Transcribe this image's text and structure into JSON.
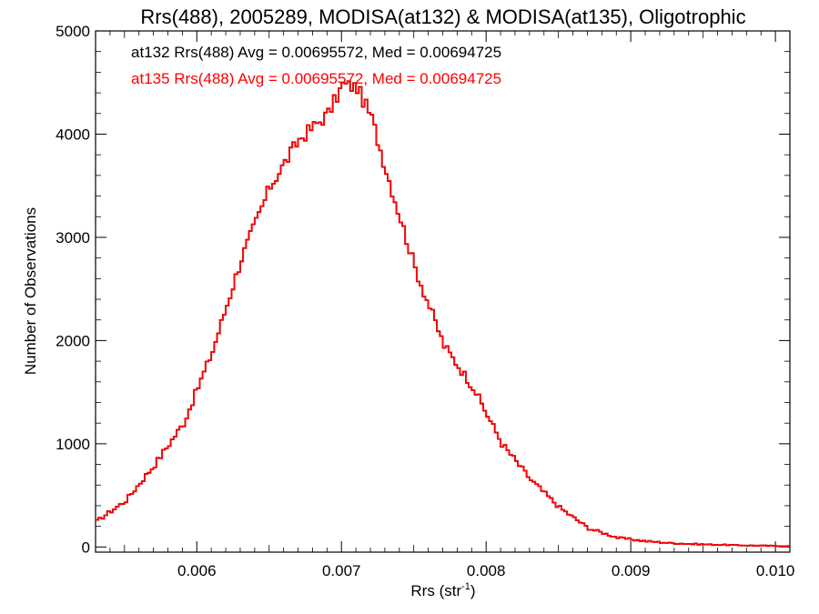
{
  "chart_data": {
    "type": "line",
    "step": true,
    "title": "Rrs(488), 2005289, MODISA(at132) & MODISA(at135), Oligotrophic",
    "xlabel_main": "Rrs (str",
    "xlabel_sup": "-1",
    "xlabel_close": ")",
    "ylabel": "Number of Observations",
    "xlim": [
      0.0053,
      0.0101
    ],
    "ylim": [
      -50,
      5000
    ],
    "xticks": [
      0.006,
      0.007,
      0.008,
      0.009,
      0.01
    ],
    "xtick_labels": [
      "0.006",
      "0.007",
      "0.008",
      "0.009",
      "0.010"
    ],
    "yticks": [
      0,
      1000,
      2000,
      3000,
      4000,
      5000
    ],
    "ytick_labels": [
      "0",
      "1000",
      "2000",
      "3000",
      "4000",
      "5000"
    ],
    "annotations": [
      {
        "text": "at132 Rrs(488) Avg = 0.00695572, Med = 0.00694725",
        "color": "#000000"
      },
      {
        "text": "at135 Rrs(488) Avg = 0.00695572, Med = 0.00694725",
        "color": "#ff0000"
      }
    ],
    "series": [
      {
        "label": "at132",
        "color": "#000000",
        "x": [
          0.0053,
          0.0055,
          0.0057,
          0.0059,
          0.0061,
          0.0063,
          0.0065,
          0.0067,
          0.0069,
          0.007,
          0.0071,
          0.0072,
          0.0073,
          0.0075,
          0.0077,
          0.0079,
          0.0081,
          0.0083,
          0.0085,
          0.0087,
          0.0089,
          0.0091,
          0.0093,
          0.0095,
          0.0097,
          0.0099,
          0.0101
        ],
        "y": [
          250,
          450,
          800,
          1200,
          1900,
          2800,
          3500,
          3950,
          4200,
          4480,
          4450,
          4150,
          3650,
          2700,
          1950,
          1550,
          1000,
          650,
          380,
          180,
          90,
          55,
          35,
          25,
          18,
          12,
          8
        ]
      },
      {
        "label": "at135",
        "color": "#ff0000",
        "x": [
          0.0053,
          0.0055,
          0.0057,
          0.0059,
          0.0061,
          0.0063,
          0.0065,
          0.0067,
          0.0069,
          0.007,
          0.0071,
          0.0072,
          0.0073,
          0.0075,
          0.0077,
          0.0079,
          0.0081,
          0.0083,
          0.0085,
          0.0087,
          0.0089,
          0.0091,
          0.0093,
          0.0095,
          0.0097,
          0.0099,
          0.0101
        ],
        "y": [
          250,
          450,
          800,
          1200,
          1900,
          2800,
          3500,
          3950,
          4200,
          4480,
          4450,
          4150,
          3650,
          2700,
          1950,
          1550,
          1000,
          650,
          380,
          180,
          90,
          55,
          35,
          25,
          18,
          12,
          8
        ]
      }
    ]
  }
}
